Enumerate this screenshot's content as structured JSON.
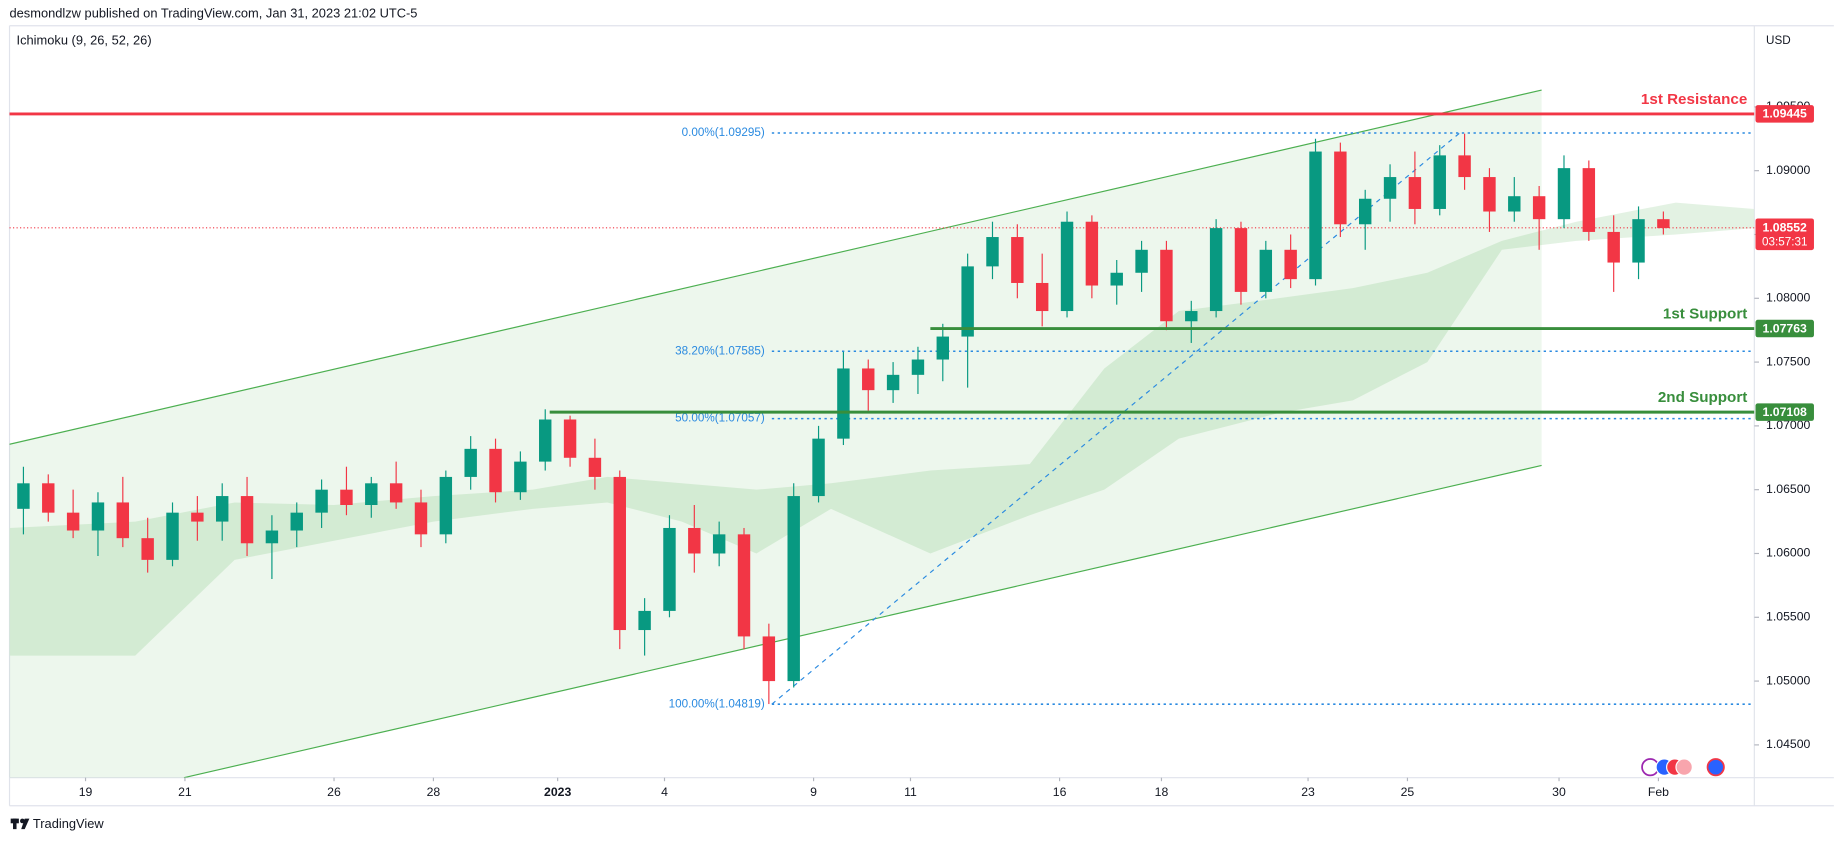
{
  "header": {
    "published": "desmondlzw published on TradingView.com, Jan 31, 2023 21:02 UTC-5",
    "indicator": "Ichimoku (9, 26, 52, 26)",
    "currency": "USD",
    "brand": "TradingView"
  },
  "chart_data": {
    "type": "candlestick",
    "xlim": [
      -1.53,
      33.58
    ],
    "xticks": [
      {
        "value": 0,
        "label": "19"
      },
      {
        "value": 2,
        "label": "21"
      },
      {
        "value": 5,
        "label": "26"
      },
      {
        "value": 7,
        "label": "28"
      },
      {
        "value": 9.5,
        "label": "2023"
      },
      {
        "value": 11.65,
        "label": "4"
      },
      {
        "value": 14.65,
        "label": "9"
      },
      {
        "value": 16.6,
        "label": "11"
      },
      {
        "value": 19.6,
        "label": "16"
      },
      {
        "value": 21.65,
        "label": "18"
      },
      {
        "value": 24.6,
        "label": "23"
      },
      {
        "value": 26.6,
        "label": "25"
      },
      {
        "value": 29.65,
        "label": "30"
      },
      {
        "value": 31.65,
        "label": "Feb"
      }
    ],
    "ylim": [
      1.04243,
      1.10136
    ],
    "yticks": [
      {
        "value": 1.045,
        "label": "1.04500"
      },
      {
        "value": 1.05,
        "label": "1.05000"
      },
      {
        "value": 1.055,
        "label": "1.05500"
      },
      {
        "value": 1.06,
        "label": "1.06000"
      },
      {
        "value": 1.065,
        "label": "1.06500"
      },
      {
        "value": 1.07,
        "label": "1.07000"
      },
      {
        "value": 1.075,
        "label": "1.07500"
      },
      {
        "value": 1.08,
        "label": "1.08000"
      },
      {
        "value": 1.085,
        "label": "1.08500"
      },
      {
        "value": 1.09,
        "label": "1.09000"
      },
      {
        "value": 1.095,
        "label": "1.09500"
      }
    ],
    "up_color": "#089981",
    "down_color": "#f23645",
    "candles": {
      "x": [
        -1.25,
        -0.75,
        -0.25,
        0.25,
        0.75,
        1.25,
        1.75,
        2.25,
        2.75,
        3.25,
        3.75,
        4.25,
        4.75,
        5.25,
        5.75,
        6.25,
        6.75,
        7.25,
        7.75,
        8.25,
        8.75,
        9.25,
        9.75,
        10.25,
        10.75,
        11.25,
        11.75,
        12.25,
        12.75,
        13.25,
        13.75,
        14.25,
        14.75,
        15.25,
        15.75,
        16.25,
        16.75,
        17.25,
        17.75,
        18.25,
        18.75,
        19.25,
        19.75,
        20.25,
        20.75,
        21.25,
        21.75,
        22.25,
        22.75,
        23.25,
        23.75,
        24.25,
        24.75,
        25.25,
        25.75,
        26.25,
        26.75,
        27.25,
        27.75,
        28.25,
        28.75,
        29.25,
        29.75,
        30.25,
        30.75,
        31.25,
        31.75
      ],
      "open": [
        1.0635,
        1.0655,
        1.0632,
        1.0618,
        1.064,
        1.0612,
        1.0595,
        1.0632,
        1.0625,
        1.0645,
        1.0608,
        1.0618,
        1.0632,
        1.065,
        1.0638,
        1.0655,
        1.064,
        1.0615,
        1.066,
        1.0682,
        1.0648,
        1.0672,
        1.0705,
        1.0675,
        1.066,
        1.054,
        1.0555,
        1.062,
        1.06,
        1.0615,
        1.0535,
        1.05,
        1.0645,
        1.069,
        1.0745,
        1.0728,
        1.074,
        1.0752,
        1.077,
        1.0825,
        1.0848,
        1.0812,
        1.079,
        1.086,
        1.081,
        1.082,
        1.0838,
        1.0782,
        1.079,
        1.0855,
        1.0805,
        1.0838,
        1.0815,
        1.0915,
        1.0858,
        1.0878,
        1.0895,
        1.087,
        1.0912,
        1.0895,
        1.0868,
        1.088,
        1.0862,
        1.0902,
        1.0852,
        1.0828,
        1.0862
      ],
      "high": [
        1.0668,
        1.0662,
        1.065,
        1.0648,
        1.066,
        1.0628,
        1.064,
        1.0645,
        1.0655,
        1.066,
        1.063,
        1.064,
        1.0658,
        1.0668,
        1.066,
        1.0672,
        1.065,
        1.0665,
        1.0692,
        1.069,
        1.068,
        1.0713,
        1.0708,
        1.069,
        1.0665,
        1.0565,
        1.063,
        1.0638,
        1.0625,
        1.062,
        1.0545,
        1.0655,
        1.07,
        1.0758,
        1.0752,
        1.075,
        1.0762,
        1.078,
        1.0835,
        1.086,
        1.0858,
        1.0835,
        1.0868,
        1.0865,
        1.083,
        1.0845,
        1.0845,
        1.0798,
        1.0862,
        1.086,
        1.0845,
        1.085,
        1.0925,
        1.0922,
        1.0885,
        1.0905,
        1.0915,
        1.092,
        1.0929,
        1.0902,
        1.0895,
        1.0888,
        1.0912,
        1.0908,
        1.0865,
        1.0872,
        1.0868
      ],
      "low": [
        1.0615,
        1.0625,
        1.0612,
        1.0598,
        1.0605,
        1.0585,
        1.059,
        1.061,
        1.061,
        1.0598,
        1.058,
        1.0605,
        1.062,
        1.063,
        1.0628,
        1.0635,
        1.0605,
        1.0608,
        1.065,
        1.064,
        1.0642,
        1.0665,
        1.0668,
        1.065,
        1.0525,
        1.052,
        1.055,
        1.0585,
        1.059,
        1.0525,
        1.0482,
        1.0495,
        1.064,
        1.0685,
        1.0712,
        1.0718,
        1.0725,
        1.0735,
        1.073,
        1.0815,
        1.08,
        1.0778,
        1.0785,
        1.08,
        1.0795,
        1.0805,
        1.0775,
        1.0765,
        1.0785,
        1.0795,
        1.08,
        1.0808,
        1.081,
        1.0848,
        1.0838,
        1.086,
        1.0858,
        1.0865,
        1.0885,
        1.0852,
        1.086,
        1.0838,
        1.0855,
        1.0845,
        1.0805,
        1.0815,
        1.085
      ],
      "close": [
        1.0655,
        1.0632,
        1.0618,
        1.064,
        1.0612,
        1.0595,
        1.0632,
        1.0625,
        1.0645,
        1.0608,
        1.0618,
        1.0632,
        1.065,
        1.0638,
        1.0655,
        1.064,
        1.0615,
        1.066,
        1.0682,
        1.0648,
        1.0672,
        1.0705,
        1.0675,
        1.066,
        1.054,
        1.0555,
        1.062,
        1.06,
        1.0615,
        1.0535,
        1.05,
        1.0645,
        1.069,
        1.0745,
        1.0728,
        1.074,
        1.0752,
        1.077,
        1.0825,
        1.0848,
        1.0812,
        1.079,
        1.086,
        1.081,
        1.082,
        1.0838,
        1.0782,
        1.079,
        1.0855,
        1.0805,
        1.0838,
        1.0815,
        1.0915,
        1.0858,
        1.0878,
        1.0895,
        1.087,
        1.0912,
        1.0895,
        1.0868,
        1.088,
        1.0862,
        1.0902,
        1.0852,
        1.0828,
        1.0862,
        1.0855
      ]
    },
    "cloud": {
      "color": "#d9eed9",
      "x": [
        -1.53,
        1,
        3,
        5,
        7,
        9,
        10.5,
        12,
        13.5,
        15,
        17,
        19,
        20.5,
        22,
        24,
        25.5,
        27,
        28.5,
        30,
        32,
        33.58
      ],
      "upper": [
        1.062,
        1.0625,
        1.064,
        1.0638,
        1.0645,
        1.065,
        1.066,
        1.0655,
        1.065,
        1.0655,
        1.0665,
        1.067,
        1.0745,
        1.079,
        1.08,
        1.0808,
        1.082,
        1.0845,
        1.086,
        1.0875,
        1.087
      ],
      "lower": [
        1.052,
        1.052,
        1.0595,
        1.061,
        1.0625,
        1.0635,
        1.064,
        1.0625,
        1.06,
        1.0635,
        1.06,
        1.063,
        1.065,
        1.069,
        1.071,
        1.072,
        1.075,
        1.0838,
        1.0845,
        1.085,
        1.0855
      ]
    },
    "channel": {
      "color": "#4caf50",
      "upper": {
        "x": [
          -1.53,
          29.3
        ],
        "y": [
          1.06856,
          1.09632
        ]
      },
      "lower": {
        "x": [
          1.98,
          29.3
        ],
        "y": [
          1.04243,
          1.0669
        ]
      }
    },
    "fib": {
      "color": "#2a8ae0",
      "x_start": 13.81,
      "levels": [
        {
          "label": "0.00%(1.09295)",
          "value": 1.09295
        },
        {
          "label": "38.20%(1.07585)",
          "value": 1.07585
        },
        {
          "label": "50.00%(1.07057)",
          "value": 1.07057
        },
        {
          "label": "100.00%(1.04819)",
          "value": 1.04819
        }
      ],
      "trend": {
        "x": [
          13.81,
          27.65
        ],
        "y": [
          1.04819,
          1.09295
        ]
      }
    },
    "levels": [
      {
        "name": "1st Resistance",
        "price": 1.09445,
        "color": "#f23645",
        "x_start": -1.53
      },
      {
        "name": "1st Support",
        "price": 1.07763,
        "color": "#388e3c",
        "x_start": 17
      },
      {
        "name": "2nd Support",
        "price": 1.07108,
        "color": "#388e3c",
        "x_start": 9.34
      }
    ],
    "last_price": {
      "price": 1.08552,
      "countdown": "03:57:31",
      "color": "#f23645"
    }
  }
}
